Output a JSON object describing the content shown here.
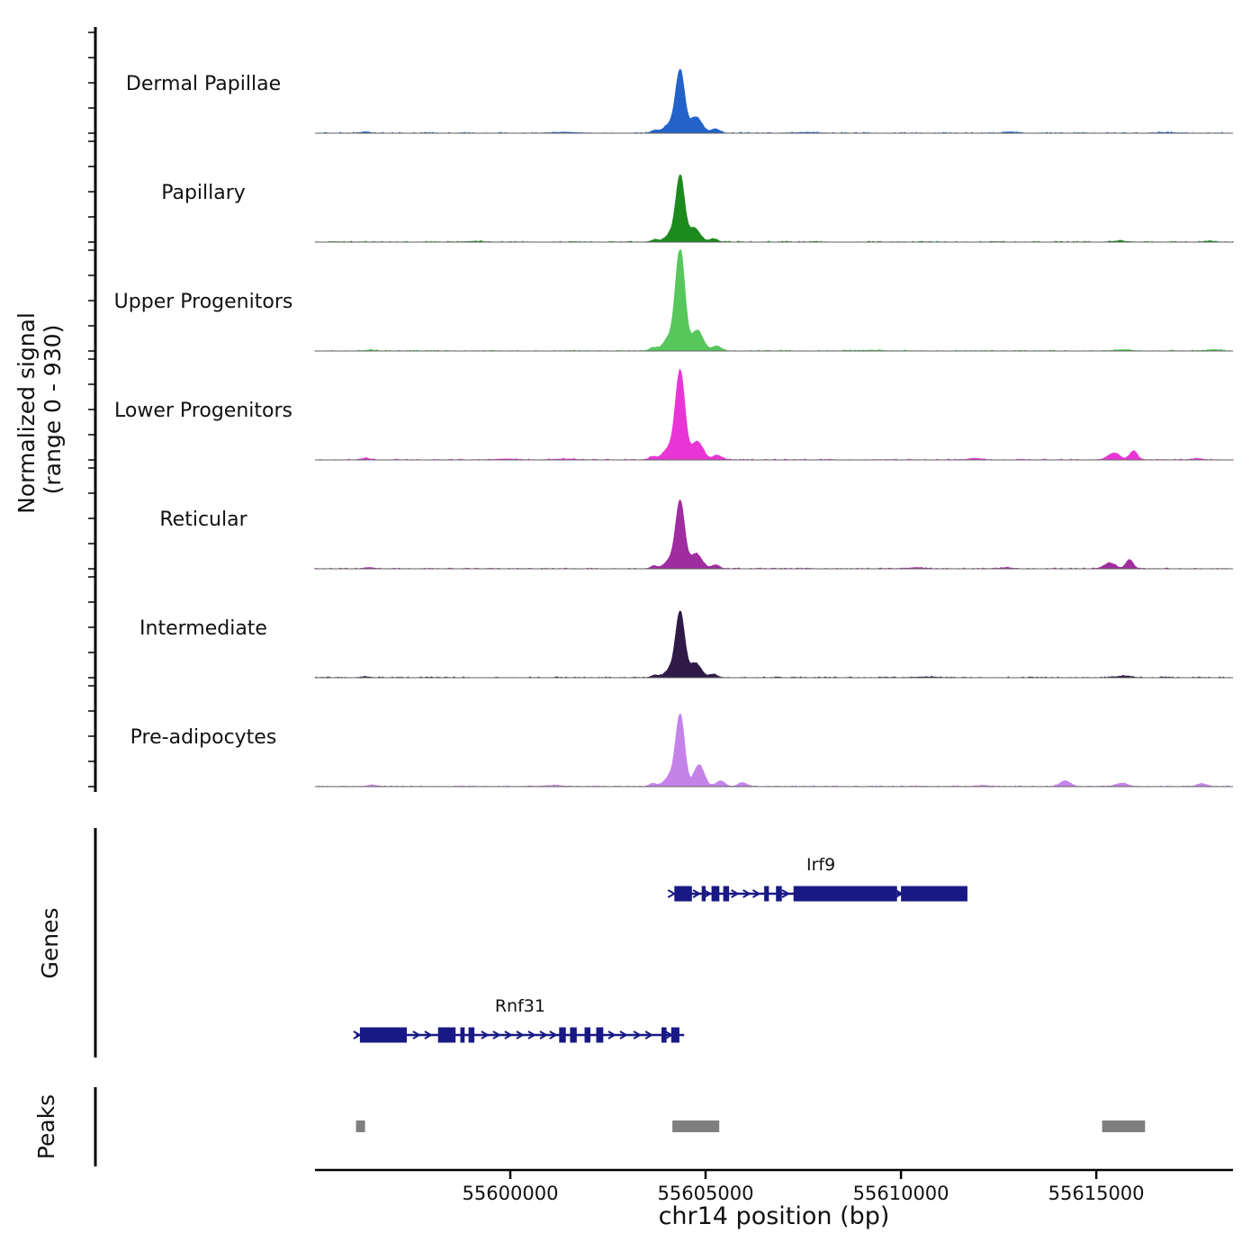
{
  "figure": {
    "y_axis_label_line1": "Normalized signal",
    "y_axis_label_line2": "(range 0 - 930)",
    "x_axis_label": "chr14 position (bp)",
    "genes_section_label": "Genes",
    "peaks_section_label": "Peaks"
  },
  "chart_data": {
    "type": "area",
    "title": "",
    "xlabel": "chr14 position (bp)",
    "ylabel": "Normalized signal (range 0 - 930)",
    "x_range_bp": [
      55595000,
      55618500
    ],
    "x_ticks_bp": [
      55600000,
      55605000,
      55610000,
      55615000
    ],
    "x_tick_labels": [
      "55600000",
      "55605000",
      "55610000",
      "55615000"
    ],
    "y_range": [
      0,
      930
    ],
    "colors": {
      "gene": "#191985",
      "peak_box": "#7f7f7f",
      "baseline": "#5f5f5f",
      "axis": "#000000"
    },
    "tracks": [
      {
        "label": "Dermal Papillae",
        "color": "#2363c9",
        "peaks_bp": [
          [
            55604350,
            110,
            560
          ],
          [
            55604100,
            160,
            85
          ],
          [
            55604750,
            150,
            150
          ],
          [
            55605250,
            110,
            38
          ],
          [
            55603700,
            90,
            25
          ],
          [
            55596300,
            100,
            12
          ],
          [
            55601400,
            260,
            8
          ],
          [
            55607600,
            260,
            6
          ],
          [
            55612800,
            130,
            11
          ],
          [
            55616800,
            200,
            5
          ]
        ]
      },
      {
        "label": "Papillary",
        "color": "#1d8a1d",
        "peaks_bp": [
          [
            55604350,
            105,
            585
          ],
          [
            55604130,
            150,
            80
          ],
          [
            55604700,
            150,
            130
          ],
          [
            55605200,
            100,
            30
          ],
          [
            55603700,
            90,
            22
          ],
          [
            55599100,
            200,
            6
          ],
          [
            55615600,
            160,
            10
          ],
          [
            55617900,
            130,
            8
          ]
        ]
      },
      {
        "label": "Upper Progenitors",
        "color": "#57c75c",
        "peaks_bp": [
          [
            55604350,
            115,
            920
          ],
          [
            55604080,
            160,
            120
          ],
          [
            55604780,
            150,
            190
          ],
          [
            55605280,
            110,
            45
          ],
          [
            55603650,
            90,
            30
          ],
          [
            55596400,
            120,
            8
          ],
          [
            55615700,
            180,
            12
          ],
          [
            55618000,
            140,
            13
          ],
          [
            55609200,
            300,
            5
          ]
        ]
      },
      {
        "label": "Lower Progenitors",
        "color": "#e935d6",
        "peaks_bp": [
          [
            55604350,
            115,
            800
          ],
          [
            55604080,
            160,
            110
          ],
          [
            55604780,
            150,
            170
          ],
          [
            55605300,
            110,
            42
          ],
          [
            55603650,
            90,
            28
          ],
          [
            55596300,
            110,
            14
          ],
          [
            55599900,
            220,
            8
          ],
          [
            55611900,
            160,
            13
          ],
          [
            55615450,
            150,
            62
          ],
          [
            55615950,
            95,
            80
          ],
          [
            55617600,
            120,
            12
          ],
          [
            55601400,
            260,
            7
          ]
        ]
      },
      {
        "label": "Reticular",
        "color": "#a02da0",
        "peaks_bp": [
          [
            55604350,
            110,
            605
          ],
          [
            55604110,
            150,
            85
          ],
          [
            55604750,
            150,
            140
          ],
          [
            55605250,
            100,
            34
          ],
          [
            55603680,
            90,
            24
          ],
          [
            55596400,
            110,
            10
          ],
          [
            55610400,
            170,
            10
          ],
          [
            55615350,
            140,
            52
          ],
          [
            55615850,
            90,
            85
          ],
          [
            55612700,
            150,
            8
          ]
        ]
      },
      {
        "label": "Intermediate",
        "color": "#2f1a48",
        "peaks_bp": [
          [
            55604350,
            110,
            585
          ],
          [
            55604120,
            150,
            80
          ],
          [
            55604730,
            150,
            135
          ],
          [
            55605200,
            100,
            30
          ],
          [
            55603700,
            90,
            22
          ],
          [
            55596300,
            100,
            8
          ],
          [
            55615700,
            170,
            15
          ],
          [
            55610600,
            260,
            5
          ]
        ]
      },
      {
        "label": "Pre-adipocytes",
        "color": "#c583ea",
        "peaks_bp": [
          [
            55604350,
            110,
            645
          ],
          [
            55604100,
            150,
            95
          ],
          [
            55604830,
            130,
            200
          ],
          [
            55605380,
            110,
            52
          ],
          [
            55605950,
            110,
            35
          ],
          [
            55603650,
            90,
            28
          ],
          [
            55596500,
            110,
            12
          ],
          [
            55601100,
            240,
            9
          ],
          [
            55614200,
            130,
            52
          ],
          [
            55615650,
            150,
            30
          ],
          [
            55617700,
            110,
            28
          ],
          [
            55612100,
            160,
            8
          ]
        ]
      }
    ],
    "genes": [
      {
        "name": "Irf9",
        "strand": "+",
        "start_bp": 55604200,
        "end_bp": 55611700,
        "exons_bp": [
          [
            55604200,
            55604650
          ],
          [
            55604900,
            55605000
          ],
          [
            55605150,
            55605350
          ],
          [
            55605450,
            55605600
          ],
          [
            55606500,
            55606620
          ],
          [
            55606800,
            55606950
          ],
          [
            55607250,
            55609900
          ],
          [
            55610000,
            55611700
          ]
        ],
        "arrows_bp": [
          55604130,
          55604770,
          55605050,
          55605750,
          55606050,
          55606300,
          55607050,
          55609950
        ]
      },
      {
        "name": "Rnf31",
        "strand": "+",
        "start_bp": 55596050,
        "end_bp": 55604450,
        "exons_bp": [
          [
            55596150,
            55597350
          ],
          [
            55598150,
            55598600
          ],
          [
            55598720,
            55598830
          ],
          [
            55598930,
            55599080
          ],
          [
            55601250,
            55601420
          ],
          [
            55601530,
            55601700
          ],
          [
            55601900,
            55602050
          ],
          [
            55602200,
            55602380
          ],
          [
            55603870,
            55604000
          ],
          [
            55604120,
            55604330
          ]
        ],
        "arrows_bp": [
          55596080,
          55597600,
          55597900,
          55599350,
          55599650,
          55599950,
          55600250,
          55600550,
          55600850,
          55601100,
          55602600,
          55602900,
          55603250,
          55603550,
          55604060
        ]
      }
    ],
    "peak_regions_bp": [
      [
        55596050,
        55596280
      ],
      [
        55604150,
        55605350
      ],
      [
        55615150,
        55616250
      ]
    ]
  }
}
